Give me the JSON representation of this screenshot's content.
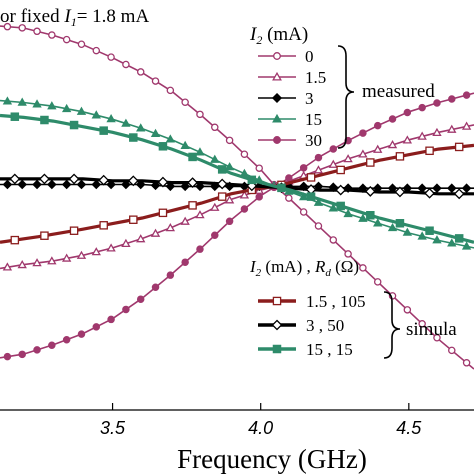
{
  "chart_data": {
    "type": "line",
    "title": "or fixed I₁= 1.8 mA",
    "title_parts": {
      "prefix": "or fixed ",
      "var": "I",
      "sub": "1",
      "suffix": "= 1.8 mA"
    },
    "xlabel": "Frequency (GHz)",
    "ylabel": "",
    "xlim": [
      3.12,
      4.72
    ],
    "ylim": [
      -1.2,
      1.0
    ],
    "x_ticks": [
      3.5,
      4.0,
      4.5
    ],
    "x_tick_labels": [
      "3.5",
      "4.0",
      "4.5"
    ],
    "grid": false,
    "legend_measured": {
      "header": "I₂ (mA)",
      "header_parts": {
        "var": "I",
        "sub": "2",
        "suffix": " (mA)"
      },
      "group_label": "measured",
      "position": "top-right",
      "entries": [
        "0",
        "1.5",
        "3",
        "15",
        "30"
      ]
    },
    "legend_simulated": {
      "header": "I₂ (mA) , Rₓ (Ω)",
      "header_parts": {
        "var1": "I",
        "sub1": "2",
        "mid": " (mA) , ",
        "var2": "R",
        "sub2": "d",
        "suffix": " (Ω)"
      },
      "group_label": "simula",
      "position": "bottom-right",
      "entries": [
        "1.5 , 105",
        "3 , 50",
        "15 , 15"
      ]
    },
    "colors": {
      "magenta": "#a0386d",
      "green": "#2e8b6a",
      "black": "#000000",
      "red": "#8b1d1d",
      "purple": "#7a1a7a"
    },
    "series": [
      {
        "name": "0",
        "group": "measured",
        "color": "#a0386d",
        "marker": "circle-open",
        "x": [
          3.12,
          3.2,
          3.3,
          3.4,
          3.5,
          3.6,
          3.7,
          3.8,
          3.9,
          4.0,
          4.05,
          4.1,
          4.2,
          4.3,
          4.4,
          4.5,
          4.6,
          4.72
        ],
        "y": [
          0.86,
          0.85,
          0.81,
          0.76,
          0.69,
          0.61,
          0.51,
          0.38,
          0.24,
          0.09,
          0.0,
          -0.07,
          -0.22,
          -0.37,
          -0.52,
          -0.67,
          -0.82,
          -0.98
        ]
      },
      {
        "name": "1.5",
        "group": "measured",
        "color": "#a0386d",
        "marker": "triangle-open",
        "x": [
          3.12,
          3.2,
          3.3,
          3.4,
          3.5,
          3.6,
          3.7,
          3.8,
          3.9,
          4.0,
          4.05,
          4.1,
          4.2,
          4.3,
          4.4,
          4.5,
          4.6,
          4.72
        ],
        "y": [
          -0.44,
          -0.42,
          -0.4,
          -0.37,
          -0.33,
          -0.28,
          -0.22,
          -0.15,
          -0.07,
          -0.02,
          0.0,
          0.03,
          0.09,
          0.15,
          0.2,
          0.25,
          0.29,
          0.33
        ]
      },
      {
        "name": "3",
        "group": "measured",
        "color": "#000000",
        "marker": "diamond-filled",
        "x": [
          3.12,
          3.2,
          3.3,
          3.4,
          3.5,
          3.6,
          3.7,
          3.8,
          3.9,
          4.0,
          4.1,
          4.2,
          4.3,
          4.4,
          4.5,
          4.6,
          4.72
        ],
        "y": [
          0.01,
          0.01,
          0.01,
          0.01,
          0.01,
          0.01,
          0.0,
          0.0,
          0.0,
          0.0,
          0.0,
          0.0,
          -0.01,
          -0.01,
          -0.01,
          -0.01,
          -0.01
        ]
      },
      {
        "name": "15",
        "group": "measured",
        "color": "#2e8b6a",
        "marker": "triangle-filled",
        "x": [
          3.12,
          3.2,
          3.3,
          3.4,
          3.5,
          3.6,
          3.7,
          3.8,
          3.9,
          4.0,
          4.05,
          4.1,
          4.2,
          4.3,
          4.4,
          4.5,
          4.6,
          4.72
        ],
        "y": [
          0.46,
          0.45,
          0.43,
          0.4,
          0.36,
          0.31,
          0.25,
          0.18,
          0.1,
          0.03,
          0.0,
          -0.03,
          -0.09,
          -0.15,
          -0.2,
          -0.25,
          -0.29,
          -0.33
        ]
      },
      {
        "name": "30",
        "group": "measured",
        "color": "#a0386d",
        "marker": "circle-filled",
        "x": [
          3.12,
          3.2,
          3.3,
          3.4,
          3.5,
          3.6,
          3.7,
          3.8,
          3.9,
          4.0,
          4.05,
          4.1,
          4.2,
          4.3,
          4.4,
          4.5,
          4.6,
          4.72
        ],
        "y": [
          -0.92,
          -0.9,
          -0.85,
          -0.79,
          -0.71,
          -0.6,
          -0.47,
          -0.33,
          -0.18,
          -0.05,
          0.0,
          0.05,
          0.16,
          0.25,
          0.33,
          0.4,
          0.45,
          0.5
        ]
      },
      {
        "name": "1.5 , 105",
        "group": "simulated",
        "color": "#8b1d1d",
        "marker": "square-open",
        "x": [
          3.12,
          3.25,
          3.4,
          3.5,
          3.6,
          3.7,
          3.8,
          3.9,
          4.0,
          4.05,
          4.1,
          4.2,
          4.3,
          4.4,
          4.5,
          4.6,
          4.72
        ],
        "y": [
          -0.3,
          -0.27,
          -0.23,
          -0.2,
          -0.17,
          -0.13,
          -0.09,
          -0.04,
          -0.01,
          0.0,
          0.02,
          0.06,
          0.1,
          0.14,
          0.17,
          0.2,
          0.22
        ]
      },
      {
        "name": "3 , 50",
        "group": "simulated",
        "color": "#000000",
        "marker": "diamond-open",
        "x": [
          3.12,
          3.2,
          3.3,
          3.4,
          3.5,
          3.6,
          3.7,
          3.8,
          3.9,
          4.0,
          4.1,
          4.2,
          4.3,
          4.4,
          4.5,
          4.6,
          4.72
        ],
        "y": [
          0.04,
          0.04,
          0.04,
          0.04,
          0.03,
          0.03,
          0.02,
          0.02,
          0.01,
          0.0,
          -0.01,
          -0.02,
          -0.02,
          -0.03,
          -0.03,
          -0.04,
          -0.04
        ]
      },
      {
        "name": "15 , 15",
        "group": "simulated",
        "color": "#2e8b6a",
        "marker": "square-filled",
        "x": [
          3.12,
          3.2,
          3.3,
          3.4,
          3.5,
          3.6,
          3.7,
          3.8,
          3.9,
          4.0,
          4.05,
          4.1,
          4.2,
          4.3,
          4.4,
          4.5,
          4.6,
          4.72
        ],
        "y": [
          0.38,
          0.37,
          0.35,
          0.32,
          0.29,
          0.25,
          0.2,
          0.14,
          0.07,
          0.02,
          0.0,
          -0.02,
          -0.07,
          -0.12,
          -0.17,
          -0.21,
          -0.25,
          -0.3
        ]
      }
    ]
  }
}
